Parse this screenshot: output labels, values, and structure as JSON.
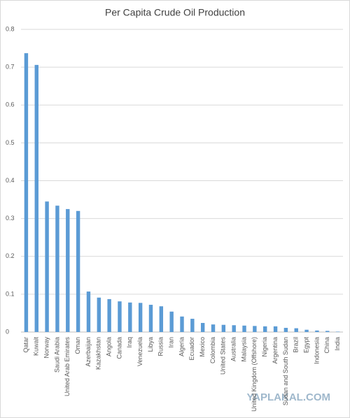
{
  "chart_data": {
    "type": "bar",
    "title": "Per Capita Crude Oil Production",
    "categories": [
      "Qatar",
      "Kuwait",
      "Norway",
      "Saudi Arabia",
      "United Arab Emirates",
      "Oman",
      "Azerbaijan",
      "Kazakhstan",
      "Angola",
      "Canada",
      "Iraq",
      "Venezuela",
      "Libya",
      "Russia",
      "Iran",
      "Algeria",
      "Ecuador",
      "Mexico",
      "Colombia",
      "United States",
      "Australia",
      "Malaysia",
      "United Kingdom (Offshore)",
      "Nigeria",
      "Argentina",
      "Sudan and South Sudan",
      "Brazil",
      "Egypt",
      "Indonesia",
      "China",
      "India"
    ],
    "values": [
      0.737,
      0.706,
      0.345,
      0.334,
      0.325,
      0.32,
      0.107,
      0.091,
      0.087,
      0.081,
      0.078,
      0.077,
      0.072,
      0.068,
      0.054,
      0.041,
      0.035,
      0.024,
      0.02,
      0.019,
      0.018,
      0.017,
      0.016,
      0.015,
      0.015,
      0.011,
      0.01,
      0.006,
      0.004,
      0.003,
      0.001
    ],
    "color": "#5b9bd5",
    "ylim": [
      0,
      0.8
    ],
    "yticks": [
      0,
      0.1,
      0.2,
      0.3,
      0.4,
      0.5,
      0.6,
      0.7,
      0.8
    ],
    "grid": true,
    "watermark": "YAPLAKAL.COM"
  }
}
